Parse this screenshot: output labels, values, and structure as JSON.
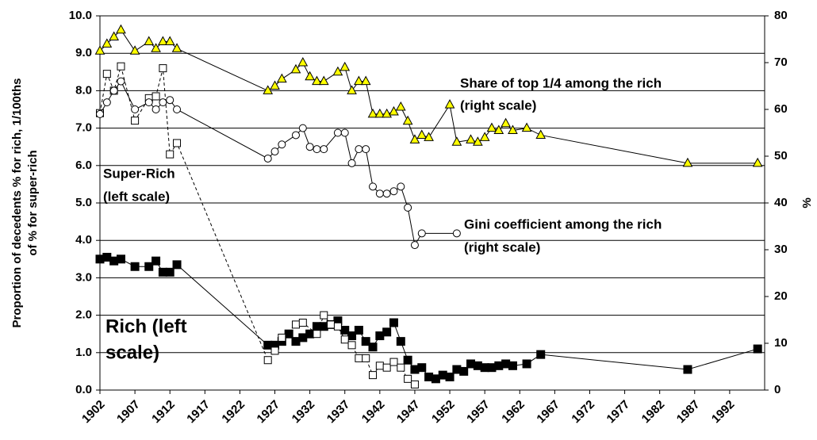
{
  "chart_data": {
    "type": "line",
    "y_label": [
      "Proportion of decedents % for rich, 1/100ths",
      "of % for super-rich"
    ],
    "y2_label": "%",
    "xlim": [
      1902,
      1997
    ],
    "xticks": [
      1902,
      1907,
      1912,
      1917,
      1922,
      1927,
      1932,
      1937,
      1942,
      1947,
      1952,
      1957,
      1962,
      1967,
      1972,
      1977,
      1982,
      1987,
      1992
    ],
    "ylim": [
      0,
      10
    ],
    "yticks": [
      {
        "value": 0,
        "label": "0.0"
      },
      {
        "value": 1,
        "label": "1.0"
      },
      {
        "value": 2,
        "label": "2.0"
      },
      {
        "value": 3,
        "label": "3.0"
      },
      {
        "value": 4,
        "label": "4.0"
      },
      {
        "value": 5,
        "label": "5.0"
      },
      {
        "value": 6,
        "label": "6.0"
      },
      {
        "value": 7,
        "label": "7.0"
      },
      {
        "value": 8,
        "label": "8.0"
      },
      {
        "value": 9,
        "label": "9.0"
      },
      {
        "value": 10,
        "label": "10.0"
      }
    ],
    "y2lim": [
      0,
      80
    ],
    "y2ticks": [
      0,
      10,
      20,
      30,
      40,
      50,
      60,
      70,
      80
    ],
    "grid": true,
    "series": [
      {
        "axis": "y",
        "marker": "square-filled",
        "color": "#000000",
        "dash": "none",
        "x": [
          1902,
          1903,
          1904,
          1905,
          1907,
          1909,
          1910,
          1911,
          1912,
          1913,
          1926,
          1927,
          1928,
          1929,
          1930,
          1931,
          1932,
          1933,
          1934,
          1935,
          1936,
          1937,
          1938,
          1939,
          1940,
          1941,
          1942,
          1943,
          1944,
          1945,
          1946,
          1947,
          1948,
          1949,
          1950,
          1951,
          1952,
          1953,
          1954,
          1955,
          1956,
          1957,
          1958,
          1959,
          1960,
          1961,
          1963,
          1965,
          1986,
          1996
        ],
        "values": [
          3.5,
          3.55,
          3.45,
          3.5,
          3.3,
          3.3,
          3.45,
          3.15,
          3.15,
          3.35,
          1.2,
          1.2,
          1.3,
          1.5,
          1.3,
          1.4,
          1.5,
          1.7,
          1.7,
          1.75,
          1.85,
          1.6,
          1.45,
          1.6,
          1.3,
          1.15,
          1.45,
          1.55,
          1.8,
          1.3,
          0.8,
          0.55,
          0.6,
          0.35,
          0.3,
          0.4,
          0.35,
          0.55,
          0.5,
          0.7,
          0.65,
          0.6,
          0.6,
          0.65,
          0.7,
          0.65,
          0.7,
          0.95,
          0.55,
          1.1
        ]
      },
      {
        "axis": "y",
        "marker": "square-open",
        "color": "#000000",
        "dash": "4,3",
        "x": [
          1902,
          1903,
          1904,
          1905,
          1907,
          1909,
          1910,
          1911,
          1912,
          1913,
          1926,
          1927,
          1928,
          1930,
          1931,
          1933,
          1934,
          1935,
          1936,
          1937,
          1938,
          1939,
          1940,
          1941,
          1942,
          1943,
          1944,
          1945,
          1946,
          1947
        ],
        "values": [
          7.4,
          8.45,
          8.0,
          8.65,
          7.2,
          7.8,
          7.85,
          8.6,
          6.3,
          6.6,
          0.8,
          1.05,
          1.4,
          1.75,
          1.8,
          1.5,
          2.0,
          1.75,
          1.7,
          1.35,
          1.2,
          0.85,
          0.85,
          0.4,
          0.65,
          0.6,
          0.75,
          0.6,
          0.3,
          0.15
        ]
      },
      {
        "axis": "y2",
        "marker": "circle-open",
        "color": "#000000",
        "dash": "none",
        "x": [
          1902,
          1903,
          1904,
          1905,
          1907,
          1909,
          1910,
          1911,
          1912,
          1913,
          1926,
          1927,
          1928,
          1930,
          1931,
          1932,
          1933,
          1934,
          1936,
          1937,
          1938,
          1939,
          1940,
          1941,
          1942,
          1943,
          1944,
          1945,
          1946,
          1947,
          1948,
          1953
        ],
        "values": [
          59,
          61.5,
          64,
          66,
          60,
          61.5,
          60,
          61.5,
          62,
          60,
          49.5,
          51,
          52.5,
          54.5,
          56,
          52,
          51.5,
          51.5,
          55,
          55,
          48.5,
          51.5,
          51.5,
          43.5,
          42,
          42,
          42.5,
          43.5,
          39,
          31,
          33.5,
          33.5
        ]
      },
      {
        "axis": "y2",
        "marker": "triangle",
        "color": "#ffff00",
        "dash": "none",
        "x": [
          1902,
          1903,
          1904,
          1905,
          1907,
          1909,
          1910,
          1911,
          1912,
          1913,
          1926,
          1927,
          1928,
          1930,
          1931,
          1932,
          1933,
          1934,
          1936,
          1937,
          1938,
          1939,
          1940,
          1941,
          1942,
          1943,
          1944,
          1945,
          1946,
          1947,
          1948,
          1949,
          1952,
          1953,
          1955,
          1956,
          1957,
          1958,
          1959,
          1960,
          1961,
          1963,
          1965,
          1986,
          1996
        ],
        "values": [
          72.5,
          74,
          75.5,
          77,
          72.5,
          74.5,
          73,
          74.5,
          74.5,
          73,
          64,
          65,
          66.5,
          68.5,
          70,
          67,
          66,
          66,
          68,
          69,
          64,
          66,
          66,
          59,
          59,
          59,
          59.5,
          60.5,
          57.5,
          53.5,
          54.5,
          54,
          61,
          53,
          53.5,
          53,
          54,
          56,
          55.5,
          57,
          55.5,
          56,
          54.5,
          48.5,
          48.5
        ]
      }
    ],
    "annotations": [
      {
        "lines": [
          "Share of top 1/4 among the rich",
          "(right scale)"
        ]
      },
      {
        "lines": [
          "Super-Rich",
          "(left scale)"
        ]
      },
      {
        "lines": [
          "Gini coefficient among the rich",
          "(right scale)"
        ]
      },
      {
        "lines": [
          "Rich (left",
          "scale)"
        ]
      }
    ]
  }
}
